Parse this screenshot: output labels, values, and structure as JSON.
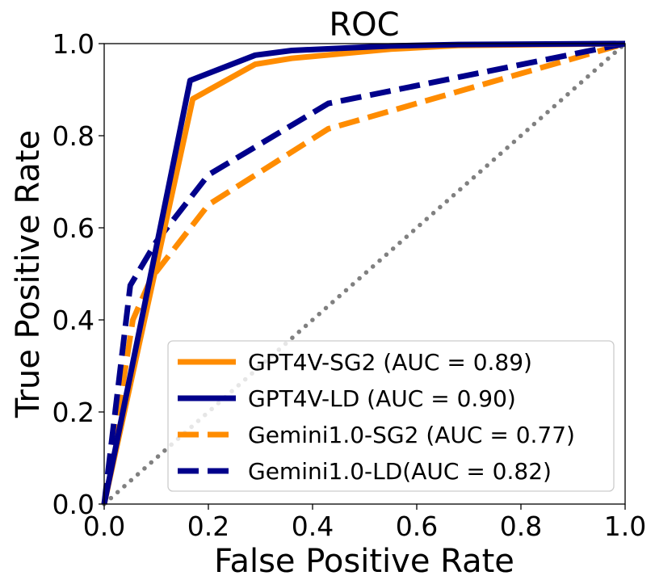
{
  "chart_data": {
    "type": "line",
    "title": "ROC",
    "xlabel": "False Positive Rate",
    "ylabel": "True Positive Rate",
    "xlim": [
      0.0,
      1.0
    ],
    "ylim": [
      0.0,
      1.0
    ],
    "xticks": [
      "0.0",
      "0.2",
      "0.4",
      "0.6",
      "0.8",
      "1.0"
    ],
    "yticks": [
      "0.0",
      "0.2",
      "0.4",
      "0.6",
      "0.8",
      "1.0"
    ],
    "legend_position": "lower-right",
    "series": [
      {
        "name": "GPT4V-SG2 (AUC = 0.89)",
        "color": "#ff8c00",
        "style": "solid",
        "x": [
          0.0,
          0.17,
          0.29,
          0.36,
          0.55,
          0.68,
          1.0
        ],
        "y": [
          0.0,
          0.88,
          0.955,
          0.968,
          0.988,
          0.996,
          1.0
        ]
      },
      {
        "name": "GPT4V-LD (AUC = 0.90)",
        "color": "#00008b",
        "style": "solid",
        "x": [
          0.0,
          0.165,
          0.29,
          0.36,
          0.55,
          0.68,
          1.0
        ],
        "y": [
          0.0,
          0.92,
          0.975,
          0.985,
          0.995,
          0.998,
          1.0
        ]
      },
      {
        "name": "Gemini1.0-SG2 (AUC = 0.77)",
        "color": "#ff8c00",
        "style": "dashed",
        "x": [
          0.0,
          0.055,
          0.09,
          0.2,
          0.43,
          1.0
        ],
        "y": [
          0.0,
          0.4,
          0.49,
          0.65,
          0.815,
          1.0
        ]
      },
      {
        "name": "Gemini1.0-LD(AUC = 0.82)",
        "color": "#00008b",
        "style": "dashed",
        "x": [
          0.0,
          0.05,
          0.1,
          0.2,
          0.43,
          1.0
        ],
        "y": [
          0.0,
          0.475,
          0.57,
          0.715,
          0.87,
          1.0
        ]
      },
      {
        "name": "chance",
        "color": "#808080",
        "style": "dotted",
        "x": [
          0.0,
          1.0
        ],
        "y": [
          0.0,
          1.0
        ]
      }
    ]
  }
}
